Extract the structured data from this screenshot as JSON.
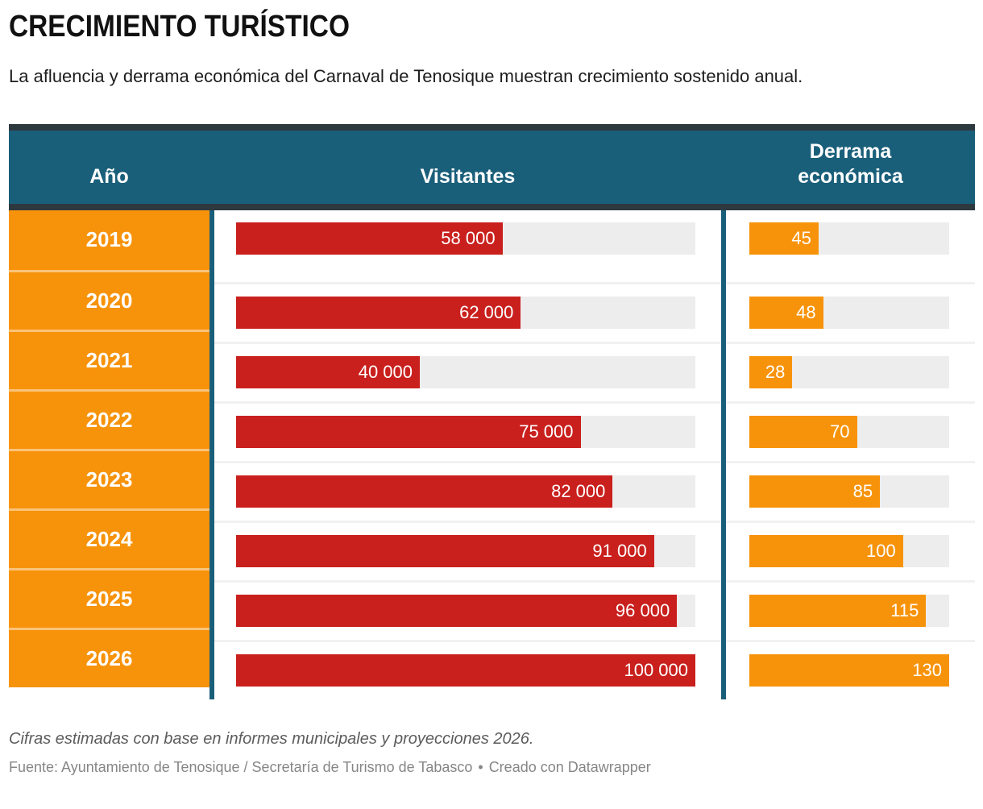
{
  "title": "CRECIMIENTO TURÍSTICO",
  "subtitle": "La afluencia y derrama económica del Carnaval de Tenosique muestran crecimiento sostenido anual.",
  "colors": {
    "teal": "#1a5f7a",
    "dark_border": "#2e383f",
    "orange": "#f7930b",
    "red": "#c9201d",
    "track": "#ededed"
  },
  "table": {
    "columns": [
      "Año",
      "Visitantes",
      "Derrama económica"
    ],
    "visitors_max": 100000,
    "derrama_max": 130,
    "rows": [
      {
        "year": "2019",
        "visitors": 58000,
        "visitors_label": "58 000",
        "derrama": 45,
        "derrama_label": "45"
      },
      {
        "year": "2020",
        "visitors": 62000,
        "visitors_label": "62 000",
        "derrama": 48,
        "derrama_label": "48"
      },
      {
        "year": "2021",
        "visitors": 40000,
        "visitors_label": "40 000",
        "derrama": 28,
        "derrama_label": "28"
      },
      {
        "year": "2022",
        "visitors": 75000,
        "visitors_label": "75 000",
        "derrama": 70,
        "derrama_label": "70"
      },
      {
        "year": "2023",
        "visitors": 82000,
        "visitors_label": "82 000",
        "derrama": 85,
        "derrama_label": "85"
      },
      {
        "year": "2024",
        "visitors": 91000,
        "visitors_label": "91 000",
        "derrama": 100,
        "derrama_label": "100"
      },
      {
        "year": "2025",
        "visitors": 96000,
        "visitors_label": "96 000",
        "derrama": 115,
        "derrama_label": "115"
      },
      {
        "year": "2026",
        "visitors": 100000,
        "visitors_label": "100 000",
        "derrama": 130,
        "derrama_label": "130"
      }
    ]
  },
  "footer": {
    "note": "Cifras estimadas con base en informes municipales y proyecciones 2026.",
    "source": "Fuente: Ayuntamiento de Tenosique / Secretaría de Turismo de Tabasco",
    "separator": "•",
    "attribution": "Creado con Datawrapper"
  },
  "chart_data": {
    "type": "bar",
    "orientation": "horizontal",
    "title": "CRECIMIENTO TURÍSTICO",
    "subtitle": "La afluencia y derrama económica del Carnaval de Tenosique muestran crecimiento sostenido anual.",
    "categories": [
      "2019",
      "2020",
      "2021",
      "2022",
      "2023",
      "2024",
      "2025",
      "2026"
    ],
    "series": [
      {
        "name": "Visitantes",
        "values": [
          58000,
          62000,
          40000,
          75000,
          82000,
          91000,
          96000,
          100000
        ],
        "xlim": [
          0,
          100000
        ],
        "color": "#c9201d"
      },
      {
        "name": "Derrama económica",
        "values": [
          45,
          48,
          28,
          70,
          85,
          100,
          115,
          130
        ],
        "xlim": [
          0,
          130
        ],
        "color": "#f7930b"
      }
    ],
    "legend_position": "table-header",
    "grid": false,
    "note": "Cifras estimadas con base en informes municipales y proyecciones 2026.",
    "source": "Fuente: Ayuntamiento de Tenosique / Secretaría de Turismo de Tabasco • Creado con Datawrapper"
  }
}
